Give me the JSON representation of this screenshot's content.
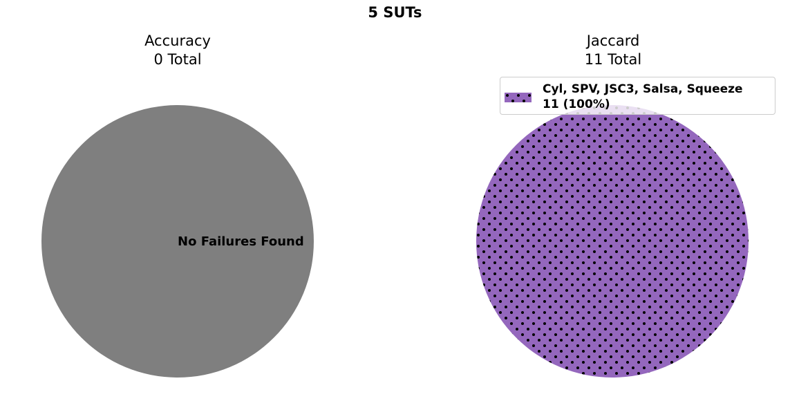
{
  "title": "5 SUTs",
  "chart_data": [
    {
      "type": "pie",
      "title": "Accuracy",
      "subtitle": "0 Total",
      "slices": [
        {
          "label": "No Failures Found",
          "value": 1,
          "color": "#7f7f7f",
          "pattern": "none"
        }
      ],
      "center_text": "No Failures Found",
      "legend": null
    },
    {
      "type": "pie",
      "title": "Jaccard",
      "subtitle": "11 Total",
      "slices": [
        {
          "label": "Cyl, SPV, JSC3, Salsa, Squeeze",
          "value": 11,
          "percent": "100%",
          "color": "#9467bd",
          "pattern": "dots"
        }
      ],
      "legend": {
        "placement": "upper right",
        "entries": [
          {
            "name": "Cyl, SPV, JSC3, Salsa, Squeeze",
            "count_text": "11 (100%)",
            "color": "#9467bd"
          }
        ]
      }
    }
  ]
}
